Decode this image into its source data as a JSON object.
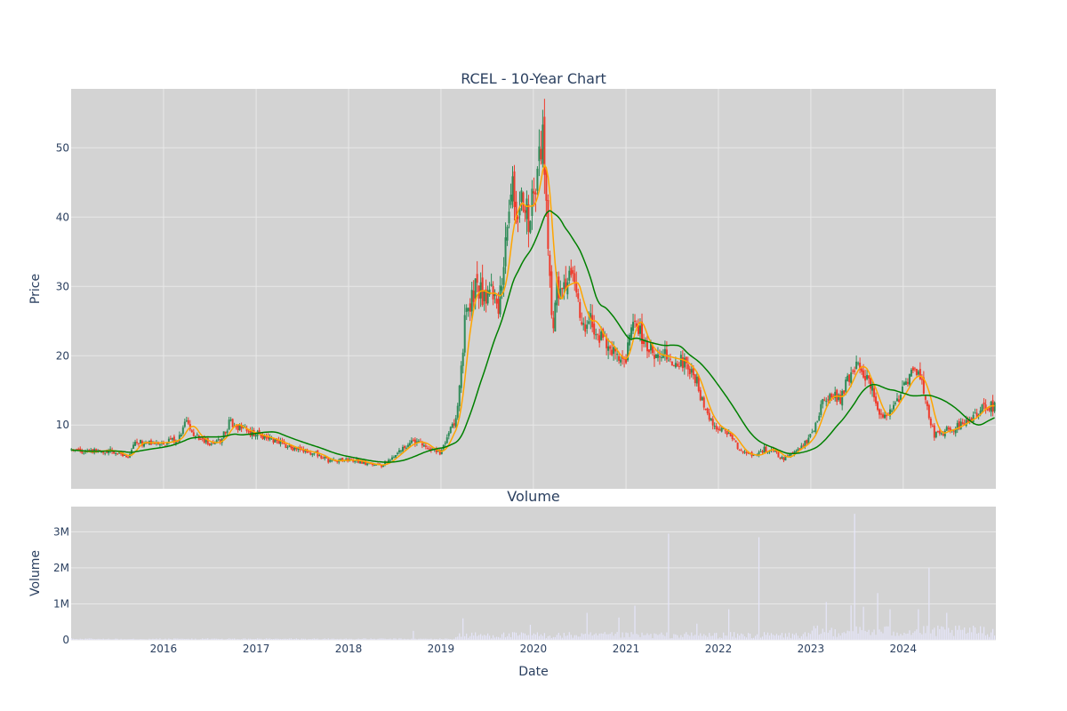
{
  "chart_data": [
    {
      "type": "candlestick",
      "title": "RCEL - 10-Year Chart",
      "xlabel": "",
      "ylabel": "Price",
      "xlim": [
        "2015-01-01",
        "2025-01-01"
      ],
      "ylim": [
        0.8,
        58.5
      ],
      "y_ticks": [
        10,
        20,
        30,
        40,
        50
      ],
      "x_ticks": [
        "2016",
        "2017",
        "2018",
        "2019",
        "2020",
        "2021",
        "2022",
        "2023",
        "2024"
      ],
      "grid": true,
      "legend": "none",
      "colors": {
        "up": "#2e8b57",
        "down": "#ef3b2c",
        "ma_short": "#ffa500",
        "ma_long": "#008000",
        "background": "#d3d3d3",
        "grid": "#e8e8e8"
      },
      "close_series": {
        "date_step_days": 7,
        "start": "2015-01-02",
        "keypoints": [
          [
            "2015-01-02",
            6.4
          ],
          [
            "2015-03-01",
            6.1
          ],
          [
            "2015-06-01",
            6.4
          ],
          [
            "2015-08-15",
            5.3
          ],
          [
            "2015-09-10",
            7.5
          ],
          [
            "2015-12-01",
            7.4
          ],
          [
            "2016-02-01",
            7.6
          ],
          [
            "2016-03-10",
            8.4
          ],
          [
            "2016-04-01",
            11.0
          ],
          [
            "2016-05-01",
            8.5
          ],
          [
            "2016-07-01",
            7.3
          ],
          [
            "2016-08-15",
            7.8
          ],
          [
            "2016-09-20",
            10.5
          ],
          [
            "2016-11-01",
            9.5
          ],
          [
            "2016-12-15",
            8.8
          ],
          [
            "2017-03-01",
            8.0
          ],
          [
            "2017-06-01",
            6.6
          ],
          [
            "2017-09-01",
            5.8
          ],
          [
            "2017-10-15",
            4.8
          ],
          [
            "2018-01-15",
            5.0
          ],
          [
            "2018-04-01",
            4.3
          ],
          [
            "2018-05-15",
            4.2
          ],
          [
            "2018-07-01",
            5.6
          ],
          [
            "2018-09-01",
            7.5
          ],
          [
            "2018-10-15",
            7.6
          ],
          [
            "2018-11-20",
            6.4
          ],
          [
            "2019-01-01",
            6.0
          ],
          [
            "2019-02-01",
            9.0
          ],
          [
            "2019-03-01",
            10.5
          ],
          [
            "2019-03-25",
            20.0
          ],
          [
            "2019-04-10",
            27.0
          ],
          [
            "2019-05-01",
            28.0
          ],
          [
            "2019-05-20",
            31.0
          ],
          [
            "2019-06-15",
            28.0
          ],
          [
            "2019-07-15",
            30.0
          ],
          [
            "2019-08-15",
            27.0
          ],
          [
            "2019-09-10",
            34.0
          ],
          [
            "2019-10-10",
            44.0
          ],
          [
            "2019-10-25",
            40.0
          ],
          [
            "2019-11-15",
            43.0
          ],
          [
            "2019-12-15",
            40.0
          ],
          [
            "2020-01-10",
            45.0
          ],
          [
            "2020-02-10",
            52.0
          ],
          [
            "2020-02-22",
            40.0
          ],
          [
            "2020-03-15",
            24.0
          ],
          [
            "2020-04-05",
            30.0
          ],
          [
            "2020-05-01",
            30.0
          ],
          [
            "2020-06-01",
            31.0
          ],
          [
            "2020-06-25",
            30.0
          ],
          [
            "2020-07-10",
            24.0
          ],
          [
            "2020-08-10",
            26.0
          ],
          [
            "2020-09-01",
            24.0
          ],
          [
            "2020-10-01",
            22.0
          ],
          [
            "2020-11-01",
            21.5
          ],
          [
            "2020-12-01",
            19.0
          ],
          [
            "2021-01-01",
            20.0
          ],
          [
            "2021-02-01",
            27.0
          ],
          [
            "2021-03-01",
            23.0
          ],
          [
            "2021-04-01",
            21.0
          ],
          [
            "2021-05-01",
            20.0
          ],
          [
            "2021-06-01",
            20.0
          ],
          [
            "2021-07-01",
            19.5
          ],
          [
            "2021-08-01",
            19.5
          ],
          [
            "2021-09-01",
            18.5
          ],
          [
            "2021-10-01",
            17.0
          ],
          [
            "2021-11-01",
            13.0
          ],
          [
            "2021-12-01",
            10.5
          ],
          [
            "2022-01-01",
            9.5
          ],
          [
            "2022-02-01",
            9.0
          ],
          [
            "2022-03-01",
            8.0
          ],
          [
            "2022-04-01",
            6.0
          ],
          [
            "2022-06-01",
            5.5
          ],
          [
            "2022-07-01",
            6.5
          ],
          [
            "2022-08-01",
            6.5
          ],
          [
            "2022-09-15",
            5.0
          ],
          [
            "2022-11-01",
            6.5
          ],
          [
            "2022-12-15",
            7.5
          ],
          [
            "2023-01-15",
            9.5
          ],
          [
            "2023-02-15",
            13.5
          ],
          [
            "2023-04-01",
            14.5
          ],
          [
            "2023-05-01",
            13.5
          ],
          [
            "2023-05-20",
            16.5
          ],
          [
            "2023-06-20",
            17.5
          ],
          [
            "2023-07-05",
            20.0
          ],
          [
            "2023-08-01",
            17.0
          ],
          [
            "2023-09-01",
            15.0
          ],
          [
            "2023-10-01",
            11.0
          ],
          [
            "2023-11-01",
            11.5
          ],
          [
            "2023-12-01",
            13.5
          ],
          [
            "2024-01-01",
            15.0
          ],
          [
            "2024-02-01",
            17.5
          ],
          [
            "2024-03-15",
            16.5
          ],
          [
            "2024-04-10",
            12.0
          ],
          [
            "2024-05-01",
            8.5
          ],
          [
            "2024-06-01",
            9.0
          ],
          [
            "2024-07-15",
            9.5
          ],
          [
            "2024-09-01",
            10.5
          ],
          [
            "2024-10-15",
            11.5
          ],
          [
            "2024-11-15",
            13.0
          ],
          [
            "2024-12-31",
            12.5
          ]
        ]
      },
      "moving_averages": [
        {
          "window_days": 50,
          "color": "#ffa500"
        },
        {
          "window_days": 200,
          "color": "#008000"
        }
      ]
    },
    {
      "type": "bar",
      "title": "Volume",
      "xlabel": "Date",
      "ylabel": "Volume",
      "ylim": [
        0,
        3700000
      ],
      "y_ticks": [
        0,
        1000000,
        2000000,
        3000000
      ],
      "y_tick_labels": [
        "0",
        "1M",
        "2M",
        "3M"
      ],
      "x_ticks": [
        "2016",
        "2017",
        "2018",
        "2019",
        "2020",
        "2021",
        "2022",
        "2023",
        "2024"
      ],
      "grid": true,
      "colors": {
        "bar": "#e6e6fa",
        "background": "#d3d3d3",
        "grid": "#e8e8e8"
      },
      "spikes": [
        [
          "2018-09-15",
          250000
        ],
        [
          "2019-04-01",
          600000
        ],
        [
          "2019-12-20",
          420000
        ],
        [
          "2020-08-01",
          750000
        ],
        [
          "2020-12-01",
          620000
        ],
        [
          "2021-02-05",
          950000
        ],
        [
          "2021-06-20",
          2950000
        ],
        [
          "2021-10-10",
          450000
        ],
        [
          "2022-02-10",
          850000
        ],
        [
          "2022-06-10",
          2850000
        ],
        [
          "2023-03-01",
          1050000
        ],
        [
          "2023-06-10",
          960000
        ],
        [
          "2023-06-20",
          3500000
        ],
        [
          "2023-07-25",
          920000
        ],
        [
          "2023-09-20",
          1300000
        ],
        [
          "2023-11-10",
          850000
        ],
        [
          "2024-03-01",
          850000
        ],
        [
          "2024-04-10",
          2000000
        ],
        [
          "2024-06-20",
          750000
        ],
        [
          "2024-11-01",
          380000
        ]
      ]
    }
  ]
}
